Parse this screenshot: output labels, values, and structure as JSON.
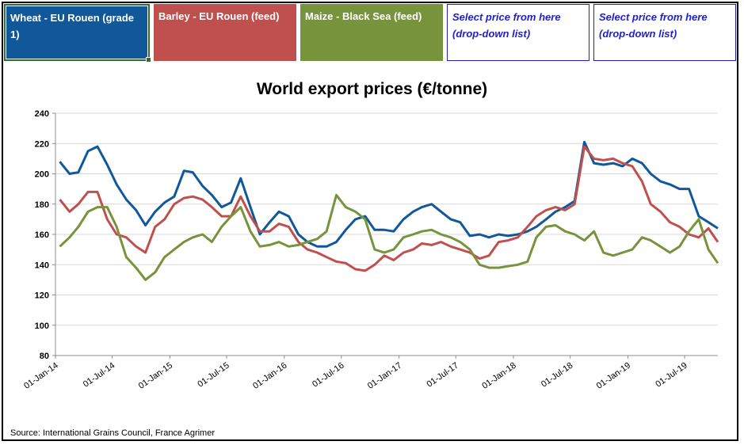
{
  "legend": {
    "wheat": {
      "label": "Wheat - EU Rouen (grade 1)",
      "color": "#11589b"
    },
    "barley": {
      "label": "Barley - EU Rouen (feed)",
      "color": "#c0504d"
    },
    "maize": {
      "label": "Maize - Black Sea (feed)",
      "color": "#77933c"
    },
    "select1": {
      "label": "Select price from here (drop-down list)"
    },
    "select2": {
      "label": "Select price from here (drop-down list)"
    }
  },
  "footer": {
    "source": "Source: International Grains Council, France Agrimer"
  },
  "chart_data": {
    "type": "line",
    "title": "World export prices (€/tonne)",
    "xlabel": "",
    "ylabel": "",
    "ylim": [
      80,
      240
    ],
    "yticks": [
      80,
      100,
      120,
      140,
      160,
      180,
      200,
      220,
      240
    ],
    "xlim": [
      "2014-01-01",
      "2019-10-15"
    ],
    "xticks": [
      "01-Jan-14",
      "01-Jul-14",
      "01-Jan-15",
      "01-Jul-15",
      "01-Jan-16",
      "01-Jul-16",
      "01-Jan-17",
      "01-Jul-17",
      "01-Jan-18",
      "01-Jul-18",
      "01-Jan-19",
      "01-Jul-19"
    ],
    "grid": "horizontal",
    "x": [
      "2014-01",
      "2014-02",
      "2014-03",
      "2014-04",
      "2014-05",
      "2014-06",
      "2014-07",
      "2014-08",
      "2014-09",
      "2014-10",
      "2014-11",
      "2014-12",
      "2015-01",
      "2015-02",
      "2015-03",
      "2015-04",
      "2015-05",
      "2015-06",
      "2015-07",
      "2015-08",
      "2015-09",
      "2015-10",
      "2015-11",
      "2015-12",
      "2016-01",
      "2016-02",
      "2016-03",
      "2016-04",
      "2016-05",
      "2016-06",
      "2016-07",
      "2016-08",
      "2016-09",
      "2016-10",
      "2016-11",
      "2016-12",
      "2017-01",
      "2017-02",
      "2017-03",
      "2017-04",
      "2017-05",
      "2017-06",
      "2017-07",
      "2017-08",
      "2017-09",
      "2017-10",
      "2017-11",
      "2017-12",
      "2018-01",
      "2018-02",
      "2018-03",
      "2018-04",
      "2018-05",
      "2018-06",
      "2018-07",
      "2018-08",
      "2018-09",
      "2018-10",
      "2018-11",
      "2018-12",
      "2019-01",
      "2019-02",
      "2019-03",
      "2019-04",
      "2019-05",
      "2019-06",
      "2019-07",
      "2019-08",
      "2019-09",
      "2019-10"
    ],
    "series": [
      {
        "name": "Wheat - EU Rouen (grade 1)",
        "color": "#11589b",
        "values": [
          208,
          200,
          201,
          215,
          218,
          206,
          193,
          183,
          176,
          166,
          175,
          181,
          185,
          202,
          201,
          192,
          186,
          178,
          181,
          197,
          178,
          160,
          168,
          175,
          172,
          160,
          155,
          152,
          152,
          155,
          163,
          170,
          172,
          163,
          163,
          162,
          170,
          175,
          178,
          180,
          175,
          170,
          168,
          159,
          160,
          158,
          160,
          159,
          160,
          162,
          165,
          170,
          175,
          178,
          182,
          221,
          207,
          206,
          207,
          205,
          210,
          207,
          200,
          195,
          193,
          190,
          190,
          172,
          168,
          164
        ]
      },
      {
        "name": "Barley - EU Rouen (feed)",
        "color": "#c0504d",
        "values": [
          183,
          175,
          180,
          188,
          188,
          170,
          160,
          158,
          152,
          148,
          165,
          170,
          180,
          184,
          185,
          183,
          178,
          172,
          172,
          185,
          172,
          162,
          162,
          167,
          165,
          155,
          150,
          148,
          145,
          142,
          141,
          137,
          136,
          140,
          146,
          143,
          148,
          150,
          154,
          153,
          155,
          152,
          150,
          148,
          144,
          146,
          155,
          156,
          158,
          165,
          172,
          176,
          178,
          176,
          180,
          218,
          210,
          209,
          210,
          207,
          205,
          195,
          180,
          175,
          168,
          165,
          160,
          158,
          164,
          155
        ]
      },
      {
        "name": "Maize - Black Sea (feed)",
        "color": "#77933c",
        "values": [
          152,
          158,
          165,
          175,
          178,
          178,
          165,
          145,
          138,
          130,
          135,
          145,
          150,
          155,
          158,
          160,
          155,
          165,
          172,
          178,
          162,
          152,
          153,
          155,
          152,
          153,
          155,
          157,
          162,
          186,
          178,
          175,
          170,
          150,
          148,
          150,
          158,
          160,
          162,
          163,
          160,
          158,
          155,
          150,
          140,
          138,
          138,
          139,
          140,
          142,
          158,
          165,
          166,
          162,
          160,
          156,
          162,
          148,
          146,
          148,
          150,
          158,
          156,
          152,
          148,
          152,
          162,
          170,
          150,
          141
        ]
      }
    ]
  }
}
